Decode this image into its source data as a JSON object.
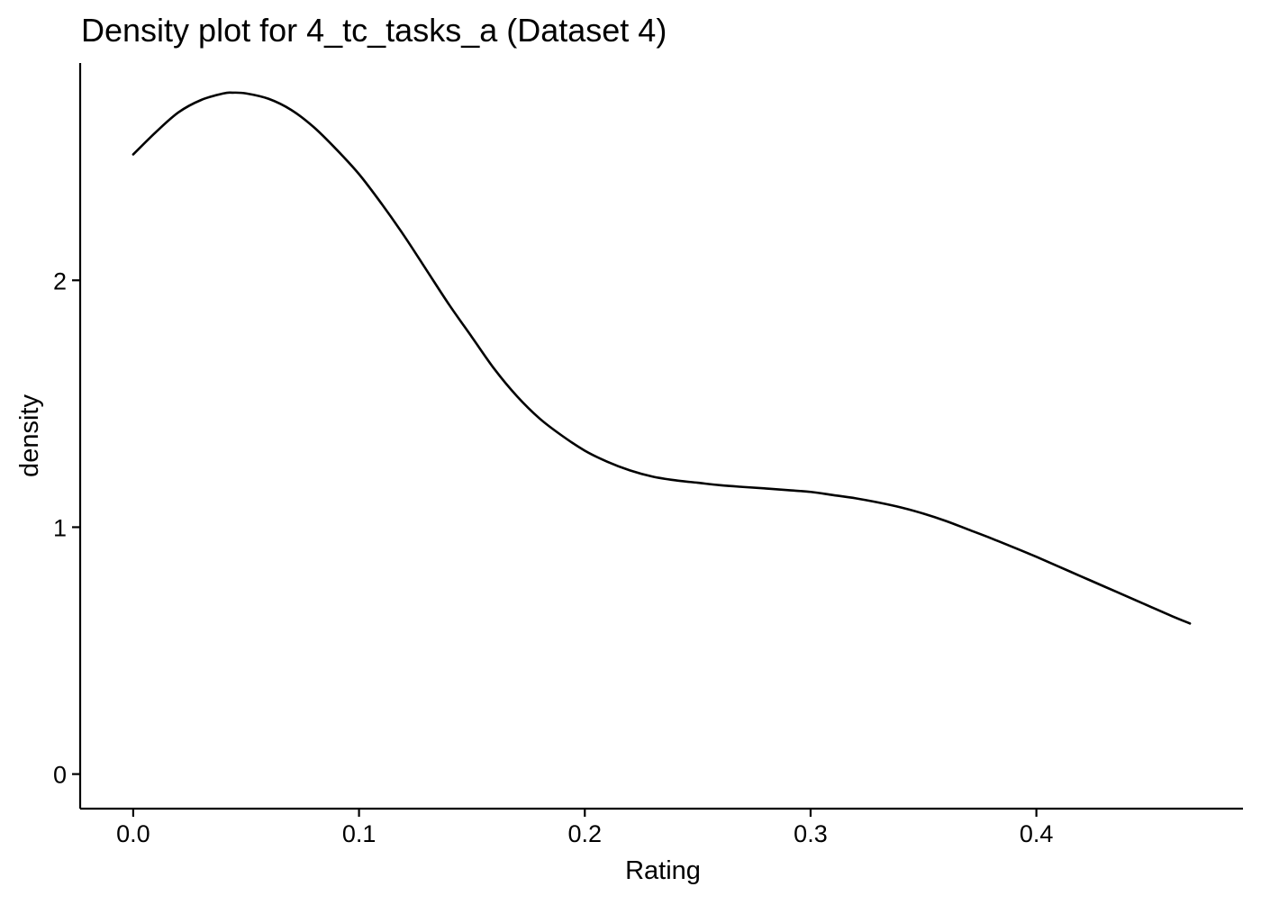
{
  "chart_data": {
    "type": "line",
    "title": "Density plot for 4_tc_tasks_a (Dataset 4)",
    "xlabel": "Rating",
    "ylabel": "density",
    "xlim": [
      -0.0235,
      0.4915
    ],
    "ylim": [
      -0.14,
      2.88
    ],
    "x_ticks": [
      0.0,
      0.1,
      0.2,
      0.3,
      0.4
    ],
    "x_tick_labels": [
      "0.0",
      "0.1",
      "0.2",
      "0.3",
      "0.4"
    ],
    "y_ticks": [
      0,
      1,
      2
    ],
    "y_tick_labels": [
      "0",
      "1",
      "2"
    ],
    "grid": false,
    "legend": "none",
    "line_color": "#000000",
    "series": [
      {
        "x": [
          0.0,
          0.01,
          0.02,
          0.03,
          0.04,
          0.044,
          0.05,
          0.06,
          0.07,
          0.08,
          0.09,
          0.1,
          0.11,
          0.12,
          0.13,
          0.14,
          0.15,
          0.16,
          0.17,
          0.18,
          0.19,
          0.2,
          0.21,
          0.22,
          0.23,
          0.24,
          0.25,
          0.26,
          0.27,
          0.28,
          0.29,
          0.3,
          0.31,
          0.32,
          0.33,
          0.34,
          0.35,
          0.36,
          0.37,
          0.38,
          0.39,
          0.4,
          0.41,
          0.42,
          0.43,
          0.44,
          0.45,
          0.46,
          0.468
        ],
        "y": [
          2.51,
          2.6,
          2.68,
          2.73,
          2.757,
          2.76,
          2.757,
          2.735,
          2.69,
          2.62,
          2.53,
          2.43,
          2.31,
          2.18,
          2.04,
          1.9,
          1.77,
          1.64,
          1.53,
          1.44,
          1.37,
          1.31,
          1.265,
          1.23,
          1.205,
          1.19,
          1.18,
          1.17,
          1.163,
          1.157,
          1.15,
          1.143,
          1.13,
          1.117,
          1.1,
          1.08,
          1.055,
          1.025,
          0.99,
          0.955,
          0.918,
          0.88,
          0.84,
          0.8,
          0.76,
          0.72,
          0.68,
          0.64,
          0.61
        ]
      }
    ]
  }
}
